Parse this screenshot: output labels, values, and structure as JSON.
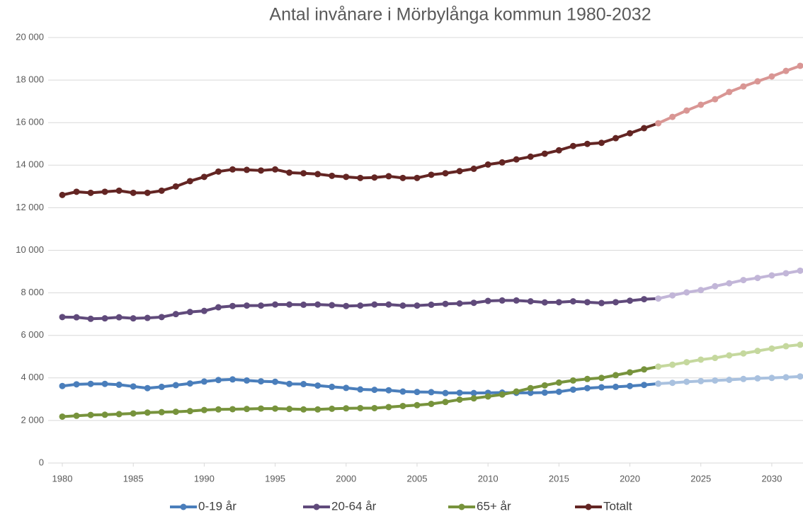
{
  "chart_data": {
    "type": "line",
    "title": "Antal  invånare i Mörbylånga kommun 1980-2032",
    "x": [
      1980,
      1981,
      1982,
      1983,
      1984,
      1985,
      1986,
      1987,
      1988,
      1989,
      1990,
      1991,
      1992,
      1993,
      1994,
      1995,
      1996,
      1997,
      1998,
      1999,
      2000,
      2001,
      2002,
      2003,
      2004,
      2005,
      2006,
      2007,
      2008,
      2009,
      2010,
      2011,
      2012,
      2013,
      2014,
      2015,
      2016,
      2017,
      2018,
      2019,
      2020,
      2021,
      2022,
      2023,
      2024,
      2025,
      2026,
      2027,
      2028,
      2029,
      2030,
      2031,
      2032
    ],
    "forecast_from": 2022,
    "series": [
      {
        "name": "0-19 år",
        "color": "#4a7ebb",
        "forecast_color": "#a9c1df",
        "values": [
          3620,
          3700,
          3720,
          3720,
          3680,
          3600,
          3520,
          3580,
          3660,
          3740,
          3830,
          3900,
          3930,
          3880,
          3840,
          3820,
          3720,
          3710,
          3640,
          3580,
          3530,
          3460,
          3440,
          3420,
          3360,
          3340,
          3330,
          3290,
          3300,
          3290,
          3300,
          3310,
          3300,
          3300,
          3310,
          3350,
          3450,
          3520,
          3560,
          3580,
          3620,
          3670,
          3730,
          3770,
          3820,
          3850,
          3880,
          3910,
          3950,
          3980,
          4000,
          4030,
          4070
        ]
      },
      {
        "name": "20-64 år",
        "color": "#604a7b",
        "forecast_color": "#c2b6d8",
        "values": [
          6860,
          6850,
          6780,
          6800,
          6850,
          6800,
          6820,
          6860,
          7000,
          7100,
          7150,
          7320,
          7380,
          7400,
          7400,
          7450,
          7450,
          7440,
          7450,
          7420,
          7380,
          7400,
          7450,
          7450,
          7400,
          7400,
          7440,
          7480,
          7500,
          7530,
          7620,
          7640,
          7640,
          7600,
          7550,
          7560,
          7600,
          7560,
          7520,
          7560,
          7630,
          7700,
          7730,
          7880,
          8020,
          8130,
          8310,
          8450,
          8600,
          8700,
          8820,
          8920,
          9040
        ]
      },
      {
        "name": "65+ år",
        "color": "#77933c",
        "forecast_color": "#c5d89e",
        "values": [
          2180,
          2220,
          2260,
          2270,
          2300,
          2330,
          2370,
          2390,
          2410,
          2440,
          2490,
          2520,
          2530,
          2540,
          2560,
          2560,
          2540,
          2520,
          2520,
          2550,
          2570,
          2580,
          2580,
          2630,
          2680,
          2720,
          2780,
          2870,
          2980,
          3040,
          3130,
          3220,
          3360,
          3520,
          3650,
          3780,
          3880,
          3950,
          4000,
          4130,
          4260,
          4400,
          4530,
          4620,
          4740,
          4860,
          4940,
          5060,
          5150,
          5270,
          5380,
          5490,
          5560
        ]
      },
      {
        "name": "Totalt",
        "color": "#632523",
        "forecast_color": "#d99694",
        "values": [
          12600,
          12750,
          12700,
          12750,
          12800,
          12700,
          12700,
          12800,
          13000,
          13250,
          13450,
          13700,
          13800,
          13780,
          13750,
          13800,
          13650,
          13620,
          13580,
          13500,
          13450,
          13400,
          13420,
          13480,
          13400,
          13400,
          13550,
          13620,
          13720,
          13830,
          14030,
          14130,
          14270,
          14400,
          14540,
          14700,
          14900,
          15000,
          15050,
          15270,
          15500,
          15740,
          15970,
          16270,
          16570,
          16840,
          17100,
          17440,
          17700,
          17940,
          18170,
          18430,
          18670
        ]
      }
    ],
    "xlim": [
      1980,
      2032
    ],
    "xticks": [
      1980,
      1985,
      1990,
      1995,
      2000,
      2005,
      2010,
      2015,
      2020,
      2025,
      2030
    ],
    "ylim": [
      0,
      20000
    ],
    "yticks": [
      0,
      {
        "value": 2000,
        "label": "2 000"
      },
      {
        "value": 4000,
        "label": "4 000"
      },
      {
        "value": 6000,
        "label": "6 000"
      },
      {
        "value": 8000,
        "label": "8 000"
      },
      {
        "value": 10000,
        "label": "10 000"
      },
      {
        "value": 12000,
        "label": "12 000"
      },
      {
        "value": 14000,
        "label": "14 000"
      },
      {
        "value": 16000,
        "label": "16 000"
      },
      {
        "value": 18000,
        "label": "18 000"
      },
      {
        "value": 20000,
        "label": "20 000"
      }
    ],
    "grid": true,
    "legend": "bottom"
  }
}
